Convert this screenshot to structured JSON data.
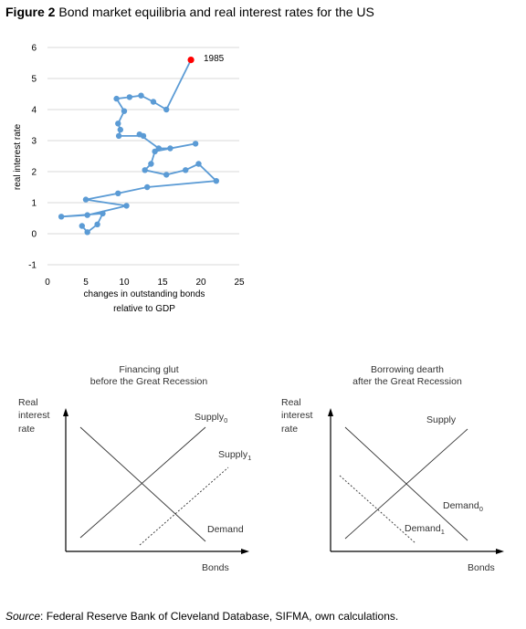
{
  "figure": {
    "label": "Figure 2",
    "title": "Bond market equilibria and real interest rates for the US"
  },
  "chart_data": [
    {
      "type": "line",
      "xlabel_line1": "changes in outstanding bonds",
      "xlabel_line2": "relative to GDP",
      "ylabel": "real interest rate",
      "xlim": [
        0,
        25
      ],
      "ylim": [
        -1,
        6
      ],
      "x_ticks": [
        "0",
        "5",
        "10",
        "15",
        "20",
        "25"
      ],
      "y_ticks": [
        "-1",
        "0",
        "1",
        "2",
        "3",
        "4",
        "5",
        "6"
      ],
      "grid": "horizontal",
      "color": "#5b9bd5",
      "highlight_color": "#ff0000",
      "annotation": "1985",
      "points": [
        [
          18.7,
          5.6
        ],
        [
          15.5,
          4.0
        ],
        [
          13.8,
          4.25
        ],
        [
          12.2,
          4.45
        ],
        [
          10.7,
          4.4
        ],
        [
          9.0,
          4.35
        ],
        [
          10.0,
          3.95
        ],
        [
          9.2,
          3.55
        ],
        [
          9.5,
          3.35
        ],
        [
          9.3,
          3.15
        ],
        [
          12.5,
          3.15
        ],
        [
          12.0,
          3.2
        ],
        [
          14.5,
          2.75
        ],
        [
          16.0,
          2.75
        ],
        [
          19.3,
          2.9
        ],
        [
          14.0,
          2.65
        ],
        [
          13.5,
          2.25
        ],
        [
          12.7,
          2.05
        ],
        [
          15.5,
          1.9
        ],
        [
          18.0,
          2.05
        ],
        [
          19.7,
          2.25
        ],
        [
          22.0,
          1.7
        ],
        [
          13.0,
          1.5
        ],
        [
          9.2,
          1.3
        ],
        [
          5.0,
          1.1
        ],
        [
          10.3,
          0.9
        ],
        [
          5.2,
          0.6
        ],
        [
          1.8,
          0.55
        ],
        [
          7.2,
          0.65
        ],
        [
          6.5,
          0.3
        ],
        [
          5.2,
          0.05
        ],
        [
          4.5,
          0.25
        ]
      ]
    },
    {
      "type": "diagram",
      "title_line1": "Financing glut",
      "title_line2": "before the Great Recession",
      "ylabel_lines": [
        "Real",
        "interest",
        "rate"
      ],
      "xlabel": "Bonds",
      "supply0_label": "Supply",
      "supply0_sub": "0",
      "supply1_label": "Supply",
      "supply1_sub": "1",
      "demand_label": "Demand"
    },
    {
      "type": "diagram",
      "title_line1": "Borrowing dearth",
      "title_line2": "after the Great Recession",
      "ylabel_lines": [
        "Real",
        "interest",
        "rate"
      ],
      "xlabel": "Bonds",
      "supply_label": "Supply",
      "demand0_label": "Demand",
      "demand0_sub": "0",
      "demand1_label": "Demand",
      "demand1_sub": "1"
    }
  ],
  "source": {
    "label": "Source",
    "text": ": Federal Reserve Bank of Cleveland Database, SIFMA, own calculations."
  }
}
